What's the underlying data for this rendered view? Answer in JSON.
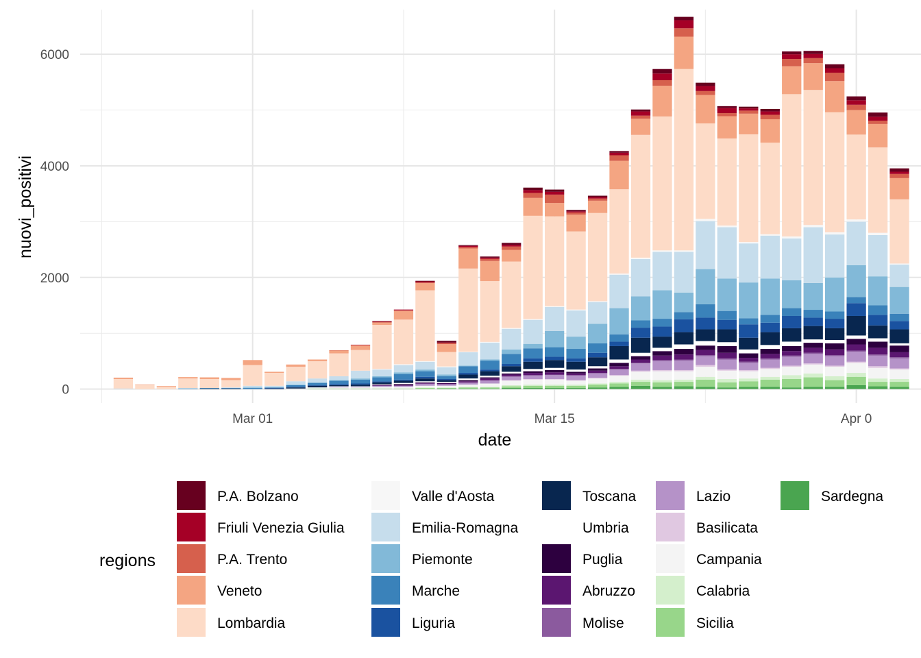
{
  "chart_data": {
    "type": "bar",
    "stacked": true,
    "xlabel": "date",
    "ylabel": "nuovi_positivi",
    "ylim": [
      -250,
      6800
    ],
    "yticks": [
      0,
      2000,
      4000,
      6000
    ],
    "y_tick_labels": [
      "0",
      "2000",
      "4000",
      "6000"
    ],
    "x_range": [
      "2020-02-22",
      "2020-04-01"
    ],
    "x_ticks": [
      {
        "date": "2020-03-01",
        "label": "Mar 01"
      },
      {
        "date": "2020-03-15",
        "label": "Mar 15"
      },
      {
        "date": "2020-03-29",
        "label": "Apr 0"
      }
    ],
    "legend_title": "regions",
    "legend_position": "bottom",
    "grid": true,
    "dates": [
      "2020-02-24",
      "2020-02-25",
      "2020-02-26",
      "2020-02-27",
      "2020-02-28",
      "2020-02-29",
      "2020-03-01",
      "2020-03-02",
      "2020-03-03",
      "2020-03-04",
      "2020-03-05",
      "2020-03-06",
      "2020-03-07",
      "2020-03-08",
      "2020-03-09",
      "2020-03-10",
      "2020-03-11",
      "2020-03-12",
      "2020-03-13",
      "2020-03-14",
      "2020-03-15",
      "2020-03-16",
      "2020-03-17",
      "2020-03-18",
      "2020-03-19",
      "2020-03-20",
      "2020-03-21",
      "2020-03-22",
      "2020-03-23",
      "2020-03-24",
      "2020-03-25",
      "2020-03-26",
      "2020-03-27",
      "2020-03-28",
      "2020-03-29",
      "2020-03-30",
      "2020-03-31"
    ],
    "series": [
      {
        "name": "P.A. Bolzano",
        "color": "#67001F",
        "values": [
          0,
          0,
          0,
          0,
          0,
          0,
          0,
          0,
          0,
          0,
          0,
          0,
          5,
          0,
          10,
          30,
          15,
          20,
          35,
          45,
          40,
          25,
          25,
          30,
          35,
          80,
          60,
          60,
          35,
          30,
          45,
          50,
          55,
          70,
          70,
          75,
          60
        ]
      },
      {
        "name": "Friuli Venezia Giulia",
        "color": "#A50026",
        "values": [
          0,
          0,
          0,
          0,
          0,
          0,
          0,
          0,
          0,
          0,
          0,
          5,
          10,
          15,
          20,
          10,
          20,
          20,
          30,
          50,
          50,
          20,
          25,
          45,
          75,
          120,
          145,
          90,
          90,
          40,
          60,
          85,
          75,
          80,
          80,
          70,
          40
        ]
      },
      {
        "name": "P.A. Trento",
        "color": "#D6604D",
        "values": [
          0,
          0,
          0,
          0,
          0,
          0,
          0,
          0,
          0,
          0,
          5,
          10,
          15,
          5,
          10,
          20,
          25,
          40,
          60,
          90,
          150,
          40,
          40,
          100,
          55,
          100,
          150,
          70,
          55,
          55,
          80,
          130,
          90,
          150,
          95,
          60,
          75
        ]
      },
      {
        "name": "Veneto",
        "color": "#F4A582",
        "values": [
          25,
          10,
          15,
          25,
          30,
          40,
          90,
          20,
          40,
          30,
          50,
          80,
          40,
          160,
          130,
          140,
          360,
          360,
          210,
          320,
          240,
          300,
          220,
          510,
          290,
          550,
          580,
          510,
          400,
          370,
          420,
          500,
          480,
          560,
          440,
          420,
          380
        ]
      },
      {
        "name": "Lombardia",
        "color": "#FDDBC7",
        "values": [
          170,
          70,
          40,
          170,
          160,
          130,
          370,
          230,
          260,
          310,
          410,
          370,
          790,
          800,
          1270,
          260,
          1490,
          1090,
          1190,
          1850,
          1610,
          1400,
          1580,
          1510,
          2200,
          2400,
          3250,
          1710,
          1560,
          1930,
          1640,
          2550,
          2420,
          2150,
          1520,
          1530,
          1150
        ]
      },
      {
        "name": "Valle d'Aosta",
        "color": "#F7F7F7",
        "values": [
          0,
          0,
          0,
          0,
          0,
          0,
          0,
          0,
          0,
          0,
          0,
          0,
          10,
          15,
          10,
          15,
          10,
          15,
          15,
          15,
          15,
          15,
          15,
          20,
          25,
          25,
          25,
          40,
          30,
          25,
          25,
          35,
          40,
          40,
          40,
          40,
          20
        ]
      },
      {
        "name": "Emilia-Romagna",
        "color": "#C6DDEC",
        "values": [
          10,
          0,
          0,
          10,
          0,
          10,
          30,
          30,
          60,
          70,
          70,
          140,
          120,
          130,
          140,
          130,
          240,
          300,
          370,
          430,
          430,
          470,
          390,
          600,
          670,
          690,
          730,
          860,
          920,
          700,
          770,
          750,
          1000,
          770,
          780,
          740,
          400
        ]
      },
      {
        "name": "Piemonte",
        "color": "#82B9D8",
        "values": [
          0,
          0,
          0,
          0,
          0,
          0,
          10,
          0,
          10,
          10,
          10,
          20,
          20,
          30,
          30,
          30,
          10,
          20,
          80,
          80,
          290,
          220,
          350,
          470,
          430,
          510,
          350,
          630,
          580,
          640,
          650,
          500,
          480,
          610,
          570,
          520,
          480
        ]
      },
      {
        "name": "Marche",
        "color": "#3A82BA",
        "values": [
          0,
          0,
          0,
          10,
          10,
          10,
          20,
          10,
          30,
          40,
          60,
          70,
          70,
          100,
          100,
          50,
          120,
          160,
          180,
          180,
          170,
          170,
          170,
          130,
          130,
          140,
          130,
          240,
          160,
          110,
          140,
          140,
          140,
          130,
          110,
          170,
          130
        ]
      },
      {
        "name": "Liguria",
        "color": "#1A52A0",
        "values": [
          0,
          0,
          0,
          0,
          0,
          0,
          0,
          10,
          10,
          10,
          20,
          20,
          20,
          20,
          30,
          20,
          30,
          30,
          40,
          60,
          60,
          60,
          80,
          80,
          180,
          180,
          230,
          210,
          170,
          240,
          170,
          220,
          150,
          170,
          230,
          190,
          150
        ]
      },
      {
        "name": "Toscana",
        "color": "#08264F",
        "values": [
          0,
          0,
          0,
          0,
          10,
          10,
          0,
          10,
          20,
          30,
          20,
          30,
          30,
          40,
          50,
          30,
          70,
          80,
          100,
          130,
          140,
          140,
          160,
          240,
          270,
          200,
          220,
          210,
          230,
          210,
          230,
          240,
          240,
          210,
          350,
          230,
          250
        ]
      },
      {
        "name": "Umbria",
        "color": "#FFFFFF",
        "values": [
          0,
          0,
          0,
          0,
          0,
          0,
          0,
          0,
          0,
          10,
          10,
          10,
          10,
          20,
          20,
          20,
          30,
          30,
          30,
          40,
          40,
          40,
          40,
          60,
          60,
          60,
          80,
          80,
          70,
          70,
          70,
          80,
          60,
          60,
          60,
          60,
          40
        ]
      },
      {
        "name": "Puglia",
        "color": "#2D003F",
        "values": [
          0,
          0,
          0,
          0,
          0,
          0,
          0,
          0,
          0,
          0,
          0,
          0,
          10,
          20,
          10,
          10,
          20,
          20,
          20,
          30,
          40,
          30,
          40,
          60,
          60,
          80,
          100,
          80,
          120,
          80,
          90,
          90,
          90,
          110,
          100,
          110,
          120
        ]
      },
      {
        "name": "Abruzzo",
        "color": "#5B1670",
        "values": [
          0,
          0,
          0,
          0,
          0,
          0,
          0,
          0,
          0,
          0,
          0,
          0,
          10,
          10,
          10,
          10,
          20,
          30,
          30,
          40,
          40,
          30,
          40,
          50,
          60,
          80,
          90,
          90,
          100,
          70,
          80,
          80,
          90,
          100,
          110,
          120,
          90
        ]
      },
      {
        "name": "Molise",
        "color": "#8B5A9E",
        "values": [
          0,
          0,
          0,
          0,
          0,
          0,
          0,
          0,
          0,
          0,
          0,
          0,
          0,
          0,
          10,
          10,
          10,
          10,
          10,
          10,
          10,
          10,
          10,
          10,
          10,
          20,
          20,
          20,
          20,
          20,
          20,
          20,
          20,
          20,
          20,
          20,
          20
        ]
      },
      {
        "name": "Lazio",
        "color": "#B592C8",
        "values": [
          0,
          0,
          0,
          0,
          0,
          0,
          0,
          0,
          0,
          0,
          10,
          10,
          20,
          20,
          30,
          20,
          30,
          50,
          60,
          60,
          70,
          80,
          80,
          100,
          130,
          160,
          170,
          160,
          180,
          130,
          150,
          160,
          170,
          170,
          180,
          190,
          180
        ]
      },
      {
        "name": "Basilicata",
        "color": "#E0C8E1",
        "values": [
          0,
          0,
          0,
          0,
          0,
          0,
          0,
          0,
          0,
          0,
          0,
          0,
          0,
          0,
          0,
          0,
          0,
          0,
          10,
          10,
          10,
          10,
          10,
          10,
          20,
          20,
          20,
          30,
          20,
          20,
          20,
          20,
          20,
          20,
          20,
          30,
          20
        ]
      },
      {
        "name": "Campania",
        "color": "#F4F4F4",
        "values": [
          0,
          0,
          0,
          0,
          0,
          0,
          0,
          0,
          10,
          10,
          20,
          20,
          30,
          30,
          30,
          30,
          40,
          60,
          80,
          90,
          90,
          70,
          90,
          110,
          140,
          160,
          150,
          180,
          150,
          130,
          140,
          150,
          160,
          170,
          180,
          190,
          170
        ]
      },
      {
        "name": "Calabria",
        "color": "#D4EFCC",
        "values": [
          0,
          0,
          0,
          0,
          0,
          0,
          0,
          0,
          0,
          0,
          0,
          0,
          0,
          0,
          10,
          10,
          10,
          10,
          20,
          20,
          20,
          20,
          20,
          30,
          40,
          40,
          40,
          50,
          60,
          50,
          50,
          70,
          70,
          70,
          70,
          60,
          50
        ]
      },
      {
        "name": "Sicilia",
        "color": "#98D68A",
        "values": [
          0,
          0,
          0,
          0,
          0,
          0,
          0,
          0,
          0,
          10,
          10,
          10,
          10,
          10,
          20,
          10,
          20,
          20,
          30,
          40,
          40,
          40,
          50,
          60,
          70,
          80,
          80,
          130,
          90,
          100,
          130,
          150,
          170,
          120,
          150,
          80,
          90
        ]
      },
      {
        "name": "Sardegna",
        "color": "#4AA550",
        "values": [
          0,
          0,
          0,
          0,
          0,
          0,
          0,
          0,
          0,
          0,
          0,
          0,
          0,
          0,
          0,
          10,
          10,
          10,
          20,
          20,
          20,
          20,
          30,
          40,
          60,
          40,
          50,
          40,
          30,
          40,
          40,
          30,
          40,
          40,
          70,
          50,
          40
        ]
      }
    ]
  }
}
